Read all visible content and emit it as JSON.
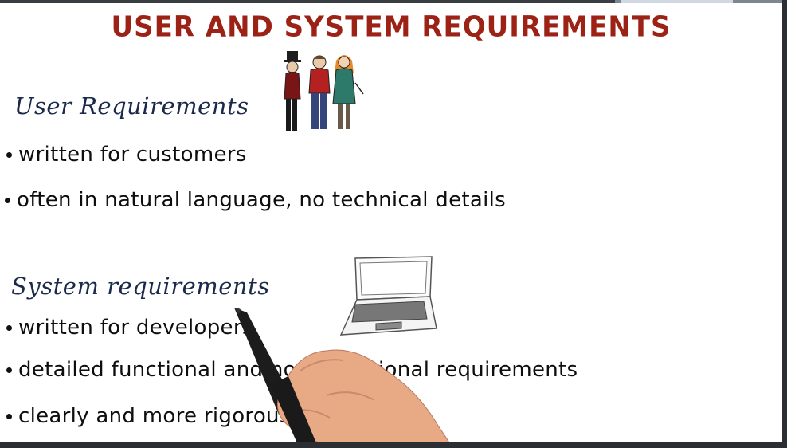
{
  "slide": {
    "title": "USER AND SYSTEM REQUIREMENTS",
    "user_section": {
      "heading": "User Requirements",
      "bullets": [
        "written for customers",
        "often in natural language, no technical details"
      ]
    },
    "system_section": {
      "heading": "System requirements",
      "bullets": [
        "written for developers",
        "detailed functional and non- functional requirements",
        "clearly and more rigorously specified"
      ]
    }
  },
  "colors": {
    "title": "#9b2215",
    "heading": "#1b2a4a",
    "body_text": "#0e0e0e",
    "board": "#ffffff",
    "frame": "#2b2e33"
  },
  "icons": [
    "people-illustration",
    "laptop-illustration",
    "hand-with-marker"
  ]
}
